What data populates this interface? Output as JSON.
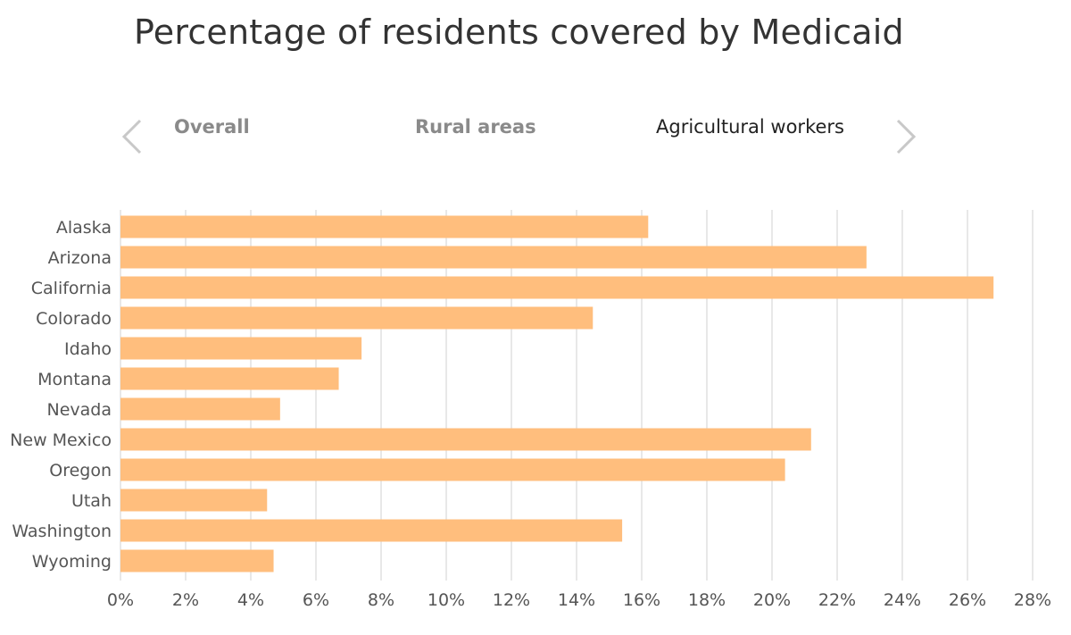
{
  "page": {
    "title": "Percentage of residents covered by Medicaid"
  },
  "nav": {
    "prev_icon": "chevron-left-icon",
    "next_icon": "chevron-right-icon",
    "tabs": [
      {
        "label": "Overall",
        "active": false
      },
      {
        "label": "Rural areas",
        "active": false
      },
      {
        "label": "Agricultural workers",
        "active": true
      }
    ]
  },
  "colors": {
    "bar": "#FFBE7D",
    "grid": "#e8e8e8",
    "text": "#555555",
    "inactive_tab": "#8a8a8a"
  },
  "chart_data": {
    "type": "bar",
    "orientation": "horizontal",
    "title": "Percentage of residents covered by Medicaid",
    "subtitle": "Agricultural workers",
    "categories": [
      "Alaska",
      "Arizona",
      "California",
      "Colorado",
      "Idaho",
      "Montana",
      "Nevada",
      "New Mexico",
      "Oregon",
      "Utah",
      "Washington",
      "Wyoming"
    ],
    "values": [
      16.2,
      22.9,
      26.8,
      14.5,
      7.4,
      6.7,
      4.9,
      21.2,
      20.4,
      4.5,
      15.4,
      4.7
    ],
    "xlim": [
      0,
      28
    ],
    "xticks": [
      0,
      2,
      4,
      6,
      8,
      10,
      12,
      14,
      16,
      18,
      20,
      22,
      24,
      26,
      28
    ],
    "xtick_labels": [
      "0%",
      "2%",
      "4%",
      "6%",
      "8%",
      "10%",
      "12%",
      "14%",
      "16%",
      "18%",
      "20%",
      "22%",
      "24%",
      "26%",
      "28%"
    ],
    "xlabel": "",
    "ylabel": "",
    "grid": true,
    "legend": "none"
  }
}
